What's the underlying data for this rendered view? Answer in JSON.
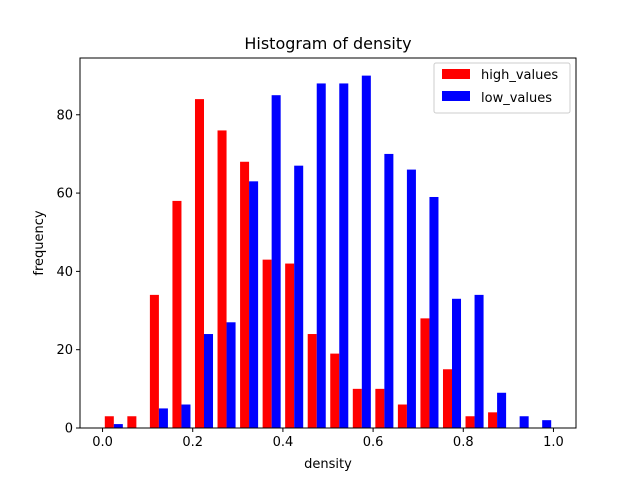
{
  "chart_data": {
    "type": "bar",
    "title": "Histogram of density",
    "xlabel": "density",
    "ylabel": "frequency",
    "xlim": [
      -0.05,
      1.05
    ],
    "ylim": [
      0,
      94.5
    ],
    "xticks": [
      0.0,
      0.2,
      0.4,
      0.6,
      0.8,
      1.0
    ],
    "xtick_labels": [
      "0.0",
      "0.2",
      "0.4",
      "0.6",
      "0.8",
      "1.0"
    ],
    "yticks": [
      0,
      20,
      40,
      60,
      80
    ],
    "ytick_labels": [
      "0",
      "20",
      "40",
      "60",
      "80"
    ],
    "bin_edges": [
      0.0,
      0.05,
      0.1,
      0.15,
      0.2,
      0.25,
      0.3,
      0.35,
      0.4,
      0.45,
      0.5,
      0.55,
      0.6,
      0.65,
      0.7,
      0.75,
      0.8,
      0.85,
      0.9,
      0.95,
      1.0
    ],
    "legend_position": "top-right",
    "series": [
      {
        "name": "high_values",
        "color": "#ff0000",
        "values": [
          3,
          3,
          34,
          58,
          84,
          76,
          68,
          43,
          42,
          24,
          19,
          10,
          10,
          6,
          28,
          15,
          3,
          4,
          0,
          0
        ]
      },
      {
        "name": "low_values",
        "color": "#0000ff",
        "values": [
          1,
          0,
          5,
          6,
          24,
          27,
          63,
          85,
          67,
          88,
          88,
          90,
          70,
          66,
          59,
          33,
          34,
          9,
          3,
          2
        ]
      }
    ]
  }
}
